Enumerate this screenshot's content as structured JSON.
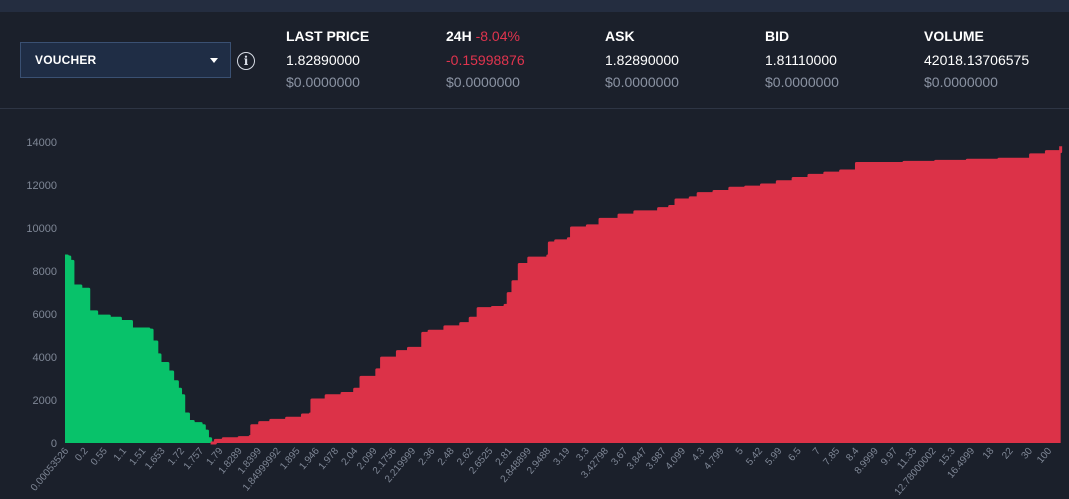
{
  "selector": {
    "value": "VOUCHER"
  },
  "info_icon_glyph": "i",
  "stats": {
    "last_price": {
      "title": "LAST PRICE",
      "value": "1.82890000",
      "usd": "$0.0000000"
    },
    "change_24h": {
      "title": "24H",
      "pct": "-8.04%",
      "value": "-0.15998876",
      "usd": "$0.0000000"
    },
    "ask": {
      "title": "ASK",
      "value": "1.82890000",
      "usd": "$0.0000000"
    },
    "bid": {
      "title": "BID",
      "value": "1.81110000",
      "usd": "$0.0000000"
    },
    "volume": {
      "title": "VOLUME",
      "value": "42018.13706575",
      "usd": "$0.0000000"
    }
  },
  "colors": {
    "bid": "#08c26a",
    "ask": "#dc3248",
    "negative": "#e0344e"
  },
  "chart_data": {
    "type": "area",
    "title": "",
    "xlabel": "",
    "ylabel": "",
    "ylim": [
      0,
      14000
    ],
    "yticks": [
      0,
      2000,
      4000,
      6000,
      8000,
      10000,
      12000,
      14000
    ],
    "xticks": [
      "0.00053526",
      "0.2",
      "0.55",
      "1.1",
      "1.51",
      "1.653",
      "1.72",
      "1.757",
      "1.79",
      "1.8289",
      "1.8399",
      "1.84999992",
      "1.895",
      "1.946",
      "1.978",
      "2.04",
      "2.099",
      "2.1756",
      "2.219999",
      "2.36",
      "2.48",
      "2.62",
      "2.6525",
      "2.81",
      "2.848899",
      "2.9488",
      "3.19",
      "3.3",
      "3.42798",
      "3.67",
      "3.847",
      "3.987",
      "4.099",
      "4.3",
      "4.799",
      "5",
      "5.42",
      "5.99",
      "6.5",
      "7",
      "7.85",
      "8.4",
      "8.9999",
      "9.97",
      "11.33",
      "12.78000002",
      "15.3",
      "16.4999",
      "18",
      "22",
      "30",
      "100"
    ],
    "grid": false,
    "series": [
      {
        "side": "bid",
        "points": [
          [
            0,
            8700
          ],
          [
            0.15,
            8650
          ],
          [
            0.3,
            8450
          ],
          [
            0.5,
            7300
          ],
          [
            1.0,
            7150
          ],
          [
            1.5,
            6100
          ],
          [
            2.0,
            5900
          ],
          [
            2.8,
            5800
          ],
          [
            3.5,
            5650
          ],
          [
            4.2,
            5300
          ],
          [
            5.3,
            5250
          ],
          [
            5.5,
            4700
          ],
          [
            5.8,
            4100
          ],
          [
            6.0,
            3700
          ],
          [
            6.5,
            3300
          ],
          [
            6.8,
            2850
          ],
          [
            7.1,
            2500
          ],
          [
            7.3,
            2200
          ],
          [
            7.5,
            1350
          ],
          [
            7.8,
            1000
          ],
          [
            8.1,
            900
          ],
          [
            8.6,
            800
          ],
          [
            8.8,
            550
          ],
          [
            9.0,
            200
          ],
          [
            9.2,
            0
          ]
        ]
      },
      {
        "side": "ask",
        "points": [
          [
            9.2,
            0
          ],
          [
            9.5,
            120
          ],
          [
            10,
            200
          ],
          [
            11,
            250
          ],
          [
            11.7,
            300
          ],
          [
            11.8,
            800
          ],
          [
            12.3,
            950
          ],
          [
            13,
            1050
          ],
          [
            14,
            1150
          ],
          [
            15,
            1300
          ],
          [
            15.5,
            1350
          ],
          [
            15.6,
            2000
          ],
          [
            16.5,
            2200
          ],
          [
            17.5,
            2300
          ],
          [
            18.3,
            2500
          ],
          [
            18.7,
            3050
          ],
          [
            19.7,
            3400
          ],
          [
            20,
            3950
          ],
          [
            21,
            4250
          ],
          [
            21.7,
            4400
          ],
          [
            22.6,
            5100
          ],
          [
            23,
            5200
          ],
          [
            24,
            5400
          ],
          [
            25,
            5550
          ],
          [
            25.6,
            5800
          ],
          [
            26.1,
            6250
          ],
          [
            27,
            6300
          ],
          [
            27.8,
            6400
          ],
          [
            28,
            6950
          ],
          [
            28.3,
            7500
          ],
          [
            28.7,
            8300
          ],
          [
            29.3,
            8600
          ],
          [
            30.5,
            8700
          ],
          [
            30.6,
            9300
          ],
          [
            31,
            9400
          ],
          [
            31.8,
            9500
          ],
          [
            32,
            10000
          ],
          [
            33,
            10100
          ],
          [
            33.8,
            10400
          ],
          [
            35,
            10600
          ],
          [
            36,
            10750
          ],
          [
            37.5,
            10900
          ],
          [
            38.2,
            11000
          ],
          [
            38.6,
            11300
          ],
          [
            39.5,
            11400
          ],
          [
            40,
            11600
          ],
          [
            41,
            11700
          ],
          [
            42,
            11850
          ],
          [
            43,
            11900
          ],
          [
            44,
            12000
          ],
          [
            45,
            12150
          ],
          [
            46,
            12300
          ],
          [
            47,
            12450
          ],
          [
            48,
            12550
          ],
          [
            49,
            12650
          ],
          [
            50,
            13000
          ],
          [
            52,
            13000
          ],
          [
            53,
            13050
          ],
          [
            55,
            13100
          ],
          [
            57,
            13150
          ],
          [
            59,
            13200
          ],
          [
            61,
            13400
          ],
          [
            62,
            13550
          ],
          [
            62.9,
            13800
          ]
        ]
      }
    ]
  }
}
